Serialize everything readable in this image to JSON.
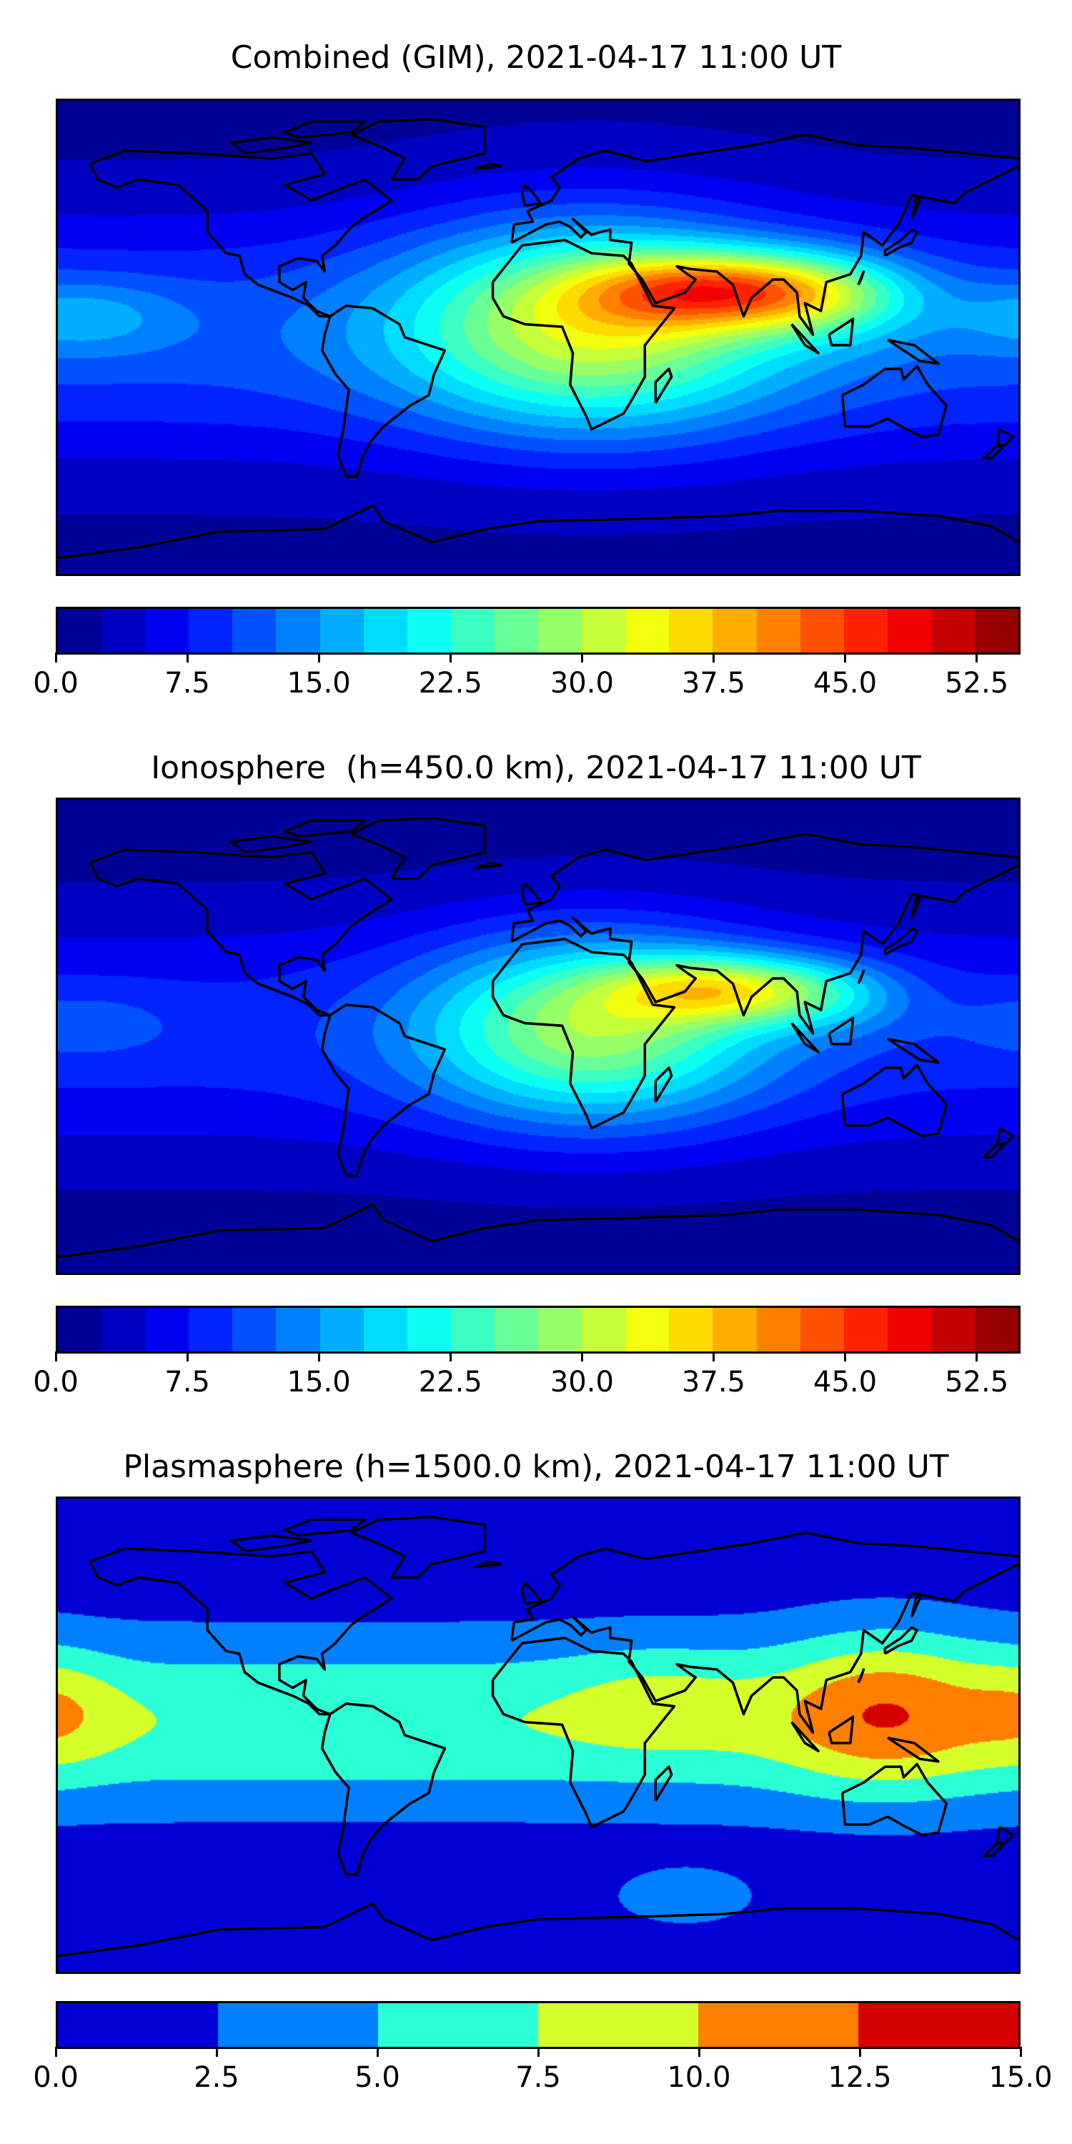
{
  "chart_data": [
    {
      "type": "heatmap",
      "title": "Combined (GIM), 2021-04-17 11:00 UT",
      "colormap": "jet",
      "colorbar": {
        "min": 0,
        "max": 55,
        "step": 2.5,
        "ticks": [
          "0.0",
          "7.5",
          "15.0",
          "22.5",
          "30.0",
          "37.5",
          "45.0",
          "52.5"
        ],
        "tick_values": [
          0,
          7.5,
          15,
          22.5,
          30,
          37.5,
          45,
          52.5
        ]
      }
    },
    {
      "type": "heatmap",
      "title": "Ionosphere  (h=450.0 km), 2021-04-17 11:00 UT",
      "colormap": "jet",
      "colorbar": {
        "min": 0,
        "max": 55,
        "step": 2.5,
        "ticks": [
          "0.0",
          "7.5",
          "15.0",
          "22.5",
          "30.0",
          "37.5",
          "45.0",
          "52.5"
        ],
        "tick_values": [
          0,
          7.5,
          15,
          22.5,
          30,
          37.5,
          45,
          52.5
        ]
      }
    },
    {
      "type": "heatmap",
      "title": "Plasmasphere (h=1500.0 km), 2021-04-17 11:00 UT",
      "colormap": "jet",
      "colorbar": {
        "min": 0,
        "max": 15,
        "step": 2.5,
        "ticks": [
          "0.0",
          "2.5",
          "5.0",
          "7.5",
          "10.0",
          "12.5",
          "15.0"
        ],
        "tick_values": [
          0,
          2.5,
          5,
          7.5,
          10,
          12.5,
          15
        ]
      }
    }
  ]
}
